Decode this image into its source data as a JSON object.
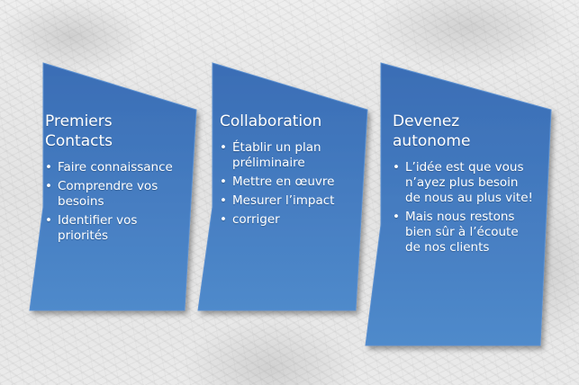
{
  "colors": {
    "block_fill_top": "#3f72b8",
    "block_fill_bottom": "#4c86c9",
    "bullet_text": "#ffffff"
  },
  "blocks": [
    {
      "title": "Premiers Contacts",
      "items": [
        "Faire connaissance",
        "Comprendre vos besoins",
        "Identifier vos priorités"
      ]
    },
    {
      "title": "Collaboration",
      "items": [
        "Établir un plan préliminaire",
        "Mettre en œuvre",
        "Mesurer l’impact",
        "corriger"
      ]
    },
    {
      "title": "Devenez autonome",
      "items": [
        "L’idée est que vous n’ayez plus besoin de nous au plus vite!",
        "Mais nous restons bien sûr à l’écoute de nos clients"
      ]
    }
  ]
}
